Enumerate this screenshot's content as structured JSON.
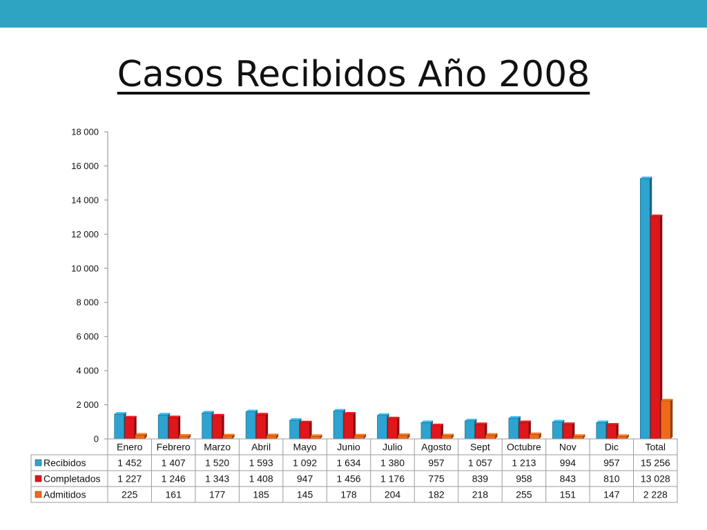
{
  "slide": {
    "title": "Casos Recibidos Año 2008",
    "band_color": "#2ea3c2"
  },
  "chart_data": {
    "type": "bar",
    "title": "Casos Recibidos Año 2008",
    "xlabel": "",
    "ylabel": "",
    "ylim": [
      0,
      18000
    ],
    "yticks": [
      0,
      2000,
      4000,
      6000,
      8000,
      10000,
      12000,
      14000,
      16000,
      18000
    ],
    "ytick_labels": [
      "0",
      "2 000",
      "4 000",
      "6 000",
      "8 000",
      "10 000",
      "12 000",
      "14 000",
      "16 000",
      "18 000"
    ],
    "grid": false,
    "legend": "data-table-left",
    "categories": [
      "Enero",
      "Febrero",
      "Marzo",
      "Abril",
      "Mayo",
      "Junio",
      "Julio",
      "Agosto",
      "Sept",
      "Octubre",
      "Nov",
      "Dic",
      "Total"
    ],
    "series": [
      {
        "name": "Recibidos",
        "color": "#2ea3d0",
        "values": [
          1452,
          1407,
          1520,
          1593,
          1092,
          1634,
          1380,
          957,
          1057,
          1213,
          994,
          957,
          15256
        ],
        "labels": [
          "1 452",
          "1 407",
          "1 520",
          "1 593",
          "1 092",
          "1 634",
          "1 380",
          "957",
          "1 057",
          "1 213",
          "994",
          "957",
          "15 256"
        ]
      },
      {
        "name": "Completados",
        "color": "#e0161b",
        "values": [
          1227,
          1246,
          1343,
          1408,
          947,
          1456,
          1176,
          775,
          839,
          958,
          843,
          810,
          13028
        ],
        "labels": [
          "1 227",
          "1 246",
          "1 343",
          "1 408",
          "947",
          "1 456",
          "1 176",
          "775",
          "839",
          "958",
          "843",
          "810",
          "13 028"
        ]
      },
      {
        "name": "Admitidos",
        "color": "#ee6a1a",
        "values": [
          225,
          161,
          177,
          185,
          145,
          178,
          204,
          182,
          218,
          255,
          151,
          147,
          2228
        ],
        "labels": [
          "225",
          "161",
          "177",
          "185",
          "145",
          "178",
          "204",
          "182",
          "218",
          "255",
          "151",
          "147",
          "2 228"
        ]
      }
    ]
  }
}
